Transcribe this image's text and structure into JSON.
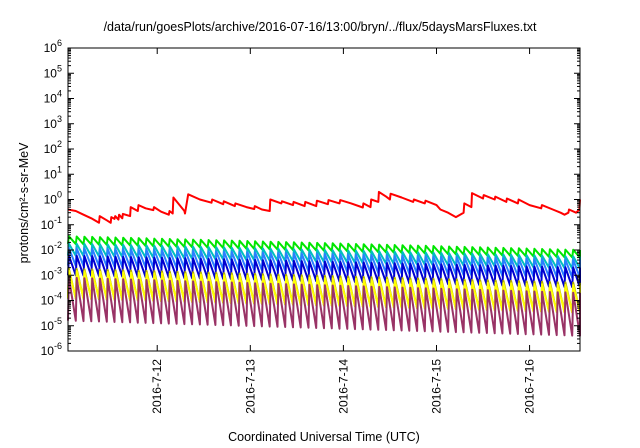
{
  "chart_data": {
    "type": "line",
    "title": "/data/run/goesPlots/archive/2016-07-16/13:00/bryn/../flux/5daysMarsFluxes.txt",
    "xlabel": "Coordinated Universal Time (UTC)",
    "ylabel": "protons/cm²-s-sr-MeV",
    "y_scale": "log",
    "ylim": [
      1e-06,
      1000000.0
    ],
    "y_ticks": [
      1e-06,
      1e-05,
      0.0001,
      0.001,
      0.01,
      0.1,
      1.0,
      10.0,
      100.0,
      1000.0,
      10000.0,
      100000.0,
      1000000.0
    ],
    "xlim": [
      "2016-07-11T01:00",
      "2016-07-16T13:00"
    ],
    "x_tick_labels": [
      "2016-7-12",
      "2016-7-13",
      "2016-7-14",
      "2016-7-15",
      "2016-7-16"
    ],
    "x_ticks": [
      "2016-07-12T00:00",
      "2016-07-13T00:00",
      "2016-07-14T00:00",
      "2016-07-15T00:00",
      "2016-07-16T00:00"
    ],
    "grid": false,
    "legend": "none",
    "series": [
      {
        "color": "#ff0000",
        "points": [
          [
            "2016-07-11T01:00",
            0.4
          ],
          [
            "2016-07-11T03:00",
            0.35
          ],
          [
            "2016-07-11T05:00",
            0.25
          ],
          [
            "2016-07-11T07:00",
            0.18
          ],
          [
            "2016-07-11T09:00",
            0.12
          ],
          [
            "2016-07-11T09:10",
            0.22
          ],
          [
            "2016-07-11T11:00",
            0.15
          ],
          [
            "2016-07-11T12:00",
            0.12
          ],
          [
            "2016-07-11T12:10",
            0.2
          ],
          [
            "2016-07-11T13:00",
            0.17
          ],
          [
            "2016-07-11T13:10",
            0.22
          ],
          [
            "2016-07-11T14:00",
            0.16
          ],
          [
            "2016-07-11T14:10",
            0.25
          ],
          [
            "2016-07-11T15:00",
            0.18
          ],
          [
            "2016-07-11T15:10",
            0.27
          ],
          [
            "2016-07-11T17:00",
            0.22
          ],
          [
            "2016-07-11T17:10",
            0.5
          ],
          [
            "2016-07-11T19:00",
            0.35
          ],
          [
            "2016-07-11T19:10",
            0.6
          ],
          [
            "2016-07-11T21:00",
            0.45
          ],
          [
            "2016-07-11T23:00",
            0.38
          ],
          [
            "2016-07-11T23:10",
            0.5
          ],
          [
            "2016-07-12T01:00",
            0.33
          ],
          [
            "2016-07-12T03:00",
            0.25
          ],
          [
            "2016-07-12T03:10",
            0.35
          ],
          [
            "2016-07-12T04:00",
            0.28
          ],
          [
            "2016-07-12T04:10",
            1.2
          ],
          [
            "2016-07-12T07:00",
            0.35
          ],
          [
            "2016-07-12T07:10",
            0.28
          ],
          [
            "2016-07-12T08:00",
            1.6
          ],
          [
            "2016-07-12T11:00",
            1.0
          ],
          [
            "2016-07-12T14:00",
            0.75
          ],
          [
            "2016-07-12T14:10",
            1.0
          ],
          [
            "2016-07-12T17:00",
            0.65
          ],
          [
            "2016-07-12T17:10",
            0.85
          ],
          [
            "2016-07-12T20:00",
            0.55
          ],
          [
            "2016-07-12T20:10",
            0.7
          ],
          [
            "2016-07-12T23:00",
            0.5
          ],
          [
            "2016-07-13T01:00",
            0.42
          ],
          [
            "2016-07-13T01:10",
            0.55
          ],
          [
            "2016-07-13T03:00",
            0.4
          ],
          [
            "2016-07-13T05:00",
            0.35
          ],
          [
            "2016-07-13T05:10",
            1.0
          ],
          [
            "2016-07-13T08:00",
            0.7
          ],
          [
            "2016-07-13T08:10",
            0.85
          ],
          [
            "2016-07-13T11:00",
            0.6
          ],
          [
            "2016-07-13T11:10",
            0.8
          ],
          [
            "2016-07-13T14:00",
            0.55
          ],
          [
            "2016-07-13T14:10",
            0.8
          ],
          [
            "2016-07-13T17:00",
            0.55
          ],
          [
            "2016-07-13T17:10",
            0.9
          ],
          [
            "2016-07-13T20:00",
            0.65
          ],
          [
            "2016-07-13T20:10",
            0.95
          ],
          [
            "2016-07-13T23:00",
            0.7
          ],
          [
            "2016-07-13T23:10",
            0.95
          ],
          [
            "2016-07-14T02:00",
            0.7
          ],
          [
            "2016-07-14T05:00",
            0.48
          ],
          [
            "2016-07-14T05:10",
            0.7
          ],
          [
            "2016-07-14T07:00",
            0.5
          ],
          [
            "2016-07-14T07:10",
            1.0
          ],
          [
            "2016-07-14T09:00",
            0.8
          ],
          [
            "2016-07-14T09:10",
            2.0
          ],
          [
            "2016-07-14T11:00",
            1.3
          ],
          [
            "2016-07-14T12:00",
            1.0
          ],
          [
            "2016-07-14T12:10",
            1.7
          ],
          [
            "2016-07-14T15:00",
            1.2
          ],
          [
            "2016-07-14T18:00",
            0.8
          ],
          [
            "2016-07-14T18:10",
            1.0
          ],
          [
            "2016-07-14T21:00",
            0.7
          ],
          [
            "2016-07-14T21:10",
            0.9
          ],
          [
            "2016-07-15T00:00",
            0.6
          ],
          [
            "2016-07-15T01:00",
            0.4
          ],
          [
            "2016-07-15T03:00",
            0.3
          ],
          [
            "2016-07-15T05:00",
            0.2
          ],
          [
            "2016-07-15T07:00",
            0.3
          ],
          [
            "2016-07-15T07:10",
            0.7
          ],
          [
            "2016-07-15T09:00",
            0.5
          ],
          [
            "2016-07-15T09:10",
            1.8
          ],
          [
            "2016-07-15T12:00",
            1.1
          ],
          [
            "2016-07-15T12:10",
            1.5
          ],
          [
            "2016-07-15T15:00",
            1.0
          ],
          [
            "2016-07-15T15:10",
            1.3
          ],
          [
            "2016-07-15T18:00",
            0.8
          ],
          [
            "2016-07-15T18:10",
            1.1
          ],
          [
            "2016-07-15T21:00",
            0.7
          ],
          [
            "2016-07-15T21:10",
            1.0
          ],
          [
            "2016-07-16T00:00",
            0.6
          ],
          [
            "2016-07-16T03:00",
            0.45
          ],
          [
            "2016-07-16T03:10",
            0.6
          ],
          [
            "2016-07-16T06:00",
            0.4
          ],
          [
            "2016-07-16T08:00",
            0.3
          ],
          [
            "2016-07-16T09:00",
            0.25
          ],
          [
            "2016-07-16T10:00",
            0.3
          ],
          [
            "2016-07-16T10:10",
            0.4
          ],
          [
            "2016-07-16T12:00",
            0.3
          ],
          [
            "2016-07-16T12:50",
            0.4
          ],
          [
            "2016-07-16T13:00",
            1.0
          ]
        ]
      },
      {
        "color": "#00e600",
        "cycle_hours": 2,
        "sawtooth": true,
        "start_high": 0.035,
        "end_high": 0.01,
        "drop_factor": 2
      },
      {
        "color": "#00bfbf",
        "cycle_hours": 2,
        "sawtooth": true,
        "start_high": 0.018,
        "end_high": 0.0055,
        "drop_factor": 3
      },
      {
        "color": "#2a7fff",
        "cycle_hours": 2,
        "sawtooth": true,
        "start_high": 0.012,
        "end_high": 0.004,
        "drop_factor": 5
      },
      {
        "color": "#0000d0",
        "cycle_hours": 2,
        "sawtooth": true,
        "start_high": 0.006,
        "end_high": 0.002,
        "drop_factor": 6
      },
      {
        "color": "#b0b000",
        "cycle_hours": 2,
        "sawtooth": true,
        "start_high": 0.0018,
        "end_high": 0.0005,
        "drop_factor": 15
      },
      {
        "color": "#ffff00",
        "cycle_hours": 2,
        "sawtooth": true,
        "start_high": 0.0015,
        "end_high": 0.0004,
        "drop_factor": 12
      },
      {
        "color": "#993366",
        "cycle_hours": 2,
        "sawtooth": true,
        "start_high": 0.0008,
        "end_high": 0.0002,
        "drop_factor": 50
      }
    ]
  }
}
